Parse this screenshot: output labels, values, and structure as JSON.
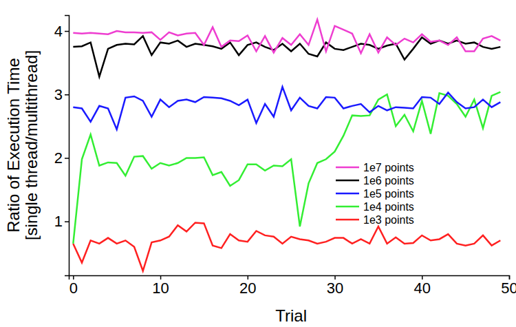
{
  "chart_data": {
    "type": "line",
    "x_label": "Trial",
    "y_label": [
      "Ratio of Execution Time",
      "[single thread/multithread]"
    ],
    "x": [
      0,
      1,
      2,
      3,
      4,
      5,
      6,
      7,
      8,
      9,
      10,
      11,
      12,
      13,
      14,
      15,
      16,
      17,
      18,
      19,
      20,
      21,
      22,
      23,
      24,
      25,
      26,
      27,
      28,
      29,
      30,
      31,
      32,
      33,
      34,
      35,
      36,
      37,
      38,
      39,
      40,
      41,
      42,
      43,
      44,
      45,
      46,
      47,
      48,
      49
    ],
    "xlim": [
      -0.5,
      50
    ],
    "xticks": [
      0,
      10,
      20,
      30,
      40,
      50
    ],
    "ylim": [
      0.15,
      4.25
    ],
    "yticks": [
      1,
      2,
      3,
      4
    ],
    "grid": false,
    "legend": "right",
    "series": [
      {
        "name": "1e7 points",
        "color": "#ee3dd0",
        "values": [
          3.97,
          3.96,
          3.97,
          3.96,
          3.95,
          4.0,
          3.98,
          3.98,
          3.97,
          3.98,
          3.86,
          3.98,
          3.93,
          3.96,
          3.97,
          3.78,
          4.06,
          3.75,
          3.85,
          3.84,
          3.93,
          3.68,
          3.92,
          3.66,
          3.89,
          3.78,
          3.95,
          3.78,
          4.18,
          3.68,
          4.08,
          4.02,
          3.96,
          3.65,
          3.95,
          3.66,
          3.9,
          3.78,
          3.88,
          3.82,
          3.95,
          3.83,
          3.85,
          3.78,
          3.9,
          3.68,
          3.68,
          3.88,
          3.92,
          3.85
        ]
      },
      {
        "name": "1e6 points",
        "color": "#000000",
        "values": [
          3.75,
          3.76,
          3.82,
          3.28,
          3.72,
          3.78,
          3.8,
          3.79,
          3.92,
          3.62,
          3.82,
          3.8,
          3.85,
          3.75,
          3.8,
          3.78,
          3.76,
          3.72,
          3.82,
          3.62,
          3.78,
          3.82,
          3.75,
          3.7,
          3.8,
          3.68,
          3.8,
          3.64,
          3.6,
          3.82,
          3.72,
          3.7,
          3.75,
          3.8,
          3.78,
          3.72,
          3.77,
          3.8,
          3.55,
          3.72,
          3.9,
          3.8,
          3.85,
          3.8,
          3.85,
          3.8,
          3.82,
          3.75,
          3.72,
          3.75
        ]
      },
      {
        "name": "1e5 points",
        "color": "#1a1aff",
        "values": [
          2.8,
          2.78,
          2.57,
          2.82,
          2.78,
          2.45,
          2.95,
          2.97,
          2.9,
          2.65,
          2.92,
          2.8,
          2.9,
          2.92,
          2.88,
          2.96,
          2.95,
          2.94,
          2.9,
          2.83,
          2.92,
          2.55,
          2.85,
          2.65,
          3.12,
          2.75,
          2.95,
          2.82,
          2.78,
          2.96,
          2.95,
          2.78,
          2.82,
          2.85,
          2.72,
          2.82,
          2.75,
          2.8,
          2.79,
          2.78,
          2.96,
          2.95,
          2.85,
          3.03,
          2.88,
          2.78,
          2.8,
          2.92,
          2.8,
          2.88
        ]
      },
      {
        "name": "1e4 points",
        "color": "#33ee33",
        "values": [
          0.65,
          1.98,
          2.37,
          1.88,
          1.93,
          1.92,
          1.72,
          2.02,
          2.03,
          1.83,
          1.92,
          1.88,
          1.92,
          2.0,
          2.0,
          2.01,
          1.73,
          1.78,
          1.56,
          1.65,
          1.9,
          1.9,
          1.8,
          1.88,
          1.87,
          1.98,
          0.92,
          1.6,
          1.92,
          1.98,
          2.1,
          2.35,
          2.67,
          2.66,
          2.67,
          2.92,
          3.0,
          2.5,
          2.68,
          2.42,
          2.9,
          2.38,
          3.02,
          2.98,
          2.85,
          2.65,
          2.92,
          2.47,
          2.98,
          3.04
        ]
      },
      {
        "name": "1e3 points",
        "color": "#ff2020",
        "values": [
          0.65,
          0.35,
          0.7,
          0.65,
          0.74,
          0.65,
          0.7,
          0.6,
          0.22,
          0.67,
          0.7,
          0.76,
          0.94,
          0.84,
          0.98,
          0.97,
          0.62,
          0.58,
          0.8,
          0.7,
          0.68,
          0.85,
          0.78,
          0.76,
          0.65,
          0.76,
          0.72,
          0.7,
          0.65,
          0.68,
          0.74,
          0.74,
          0.65,
          0.72,
          0.65,
          0.92,
          0.65,
          0.75,
          0.65,
          0.66,
          0.78,
          0.7,
          0.72,
          0.8,
          0.65,
          0.62,
          0.65,
          0.78,
          0.62,
          0.7
        ]
      }
    ]
  }
}
